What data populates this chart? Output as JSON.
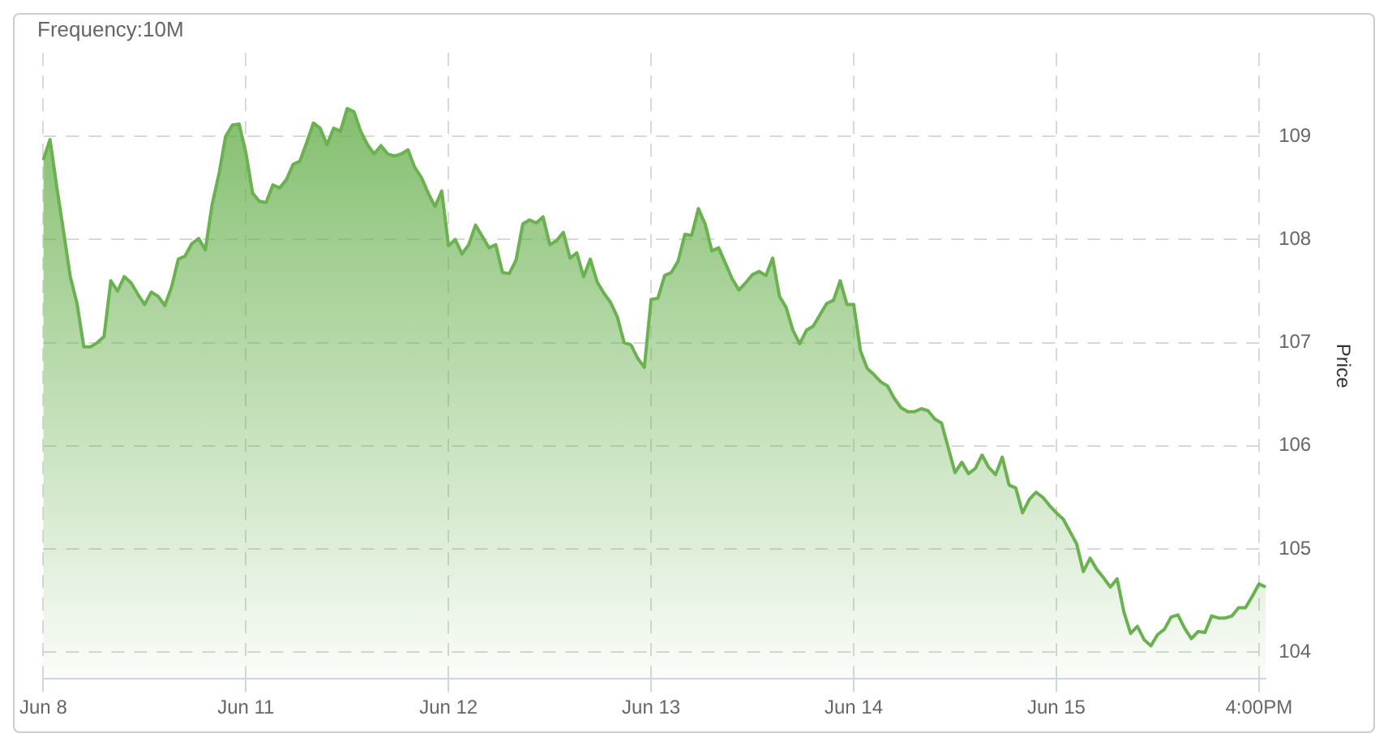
{
  "chart_data": {
    "type": "area",
    "title": "Frequency:10M",
    "ylabel": "Price",
    "categories": [
      "Jun 8",
      null,
      null,
      null,
      null,
      null,
      null,
      null,
      null,
      null,
      null,
      null,
      null,
      null,
      null,
      null,
      null,
      null,
      null,
      null,
      null,
      null,
      null,
      null,
      null,
      null,
      null,
      null,
      null,
      null,
      "Jun 11",
      null,
      null,
      null,
      null,
      null,
      null,
      null,
      null,
      null,
      null,
      null,
      null,
      null,
      null,
      null,
      null,
      null,
      null,
      null,
      null,
      null,
      null,
      null,
      null,
      null,
      null,
      null,
      null,
      null,
      "Jun 12",
      null,
      null,
      null,
      null,
      null,
      null,
      null,
      null,
      null,
      null,
      null,
      null,
      null,
      null,
      null,
      null,
      null,
      null,
      null,
      null,
      null,
      null,
      null,
      null,
      null,
      null,
      null,
      null,
      null,
      "Jun 13",
      null,
      null,
      null,
      null,
      null,
      null,
      null,
      null,
      null,
      null,
      null,
      null,
      null,
      null,
      null,
      null,
      null,
      null,
      null,
      null,
      null,
      null,
      null,
      null,
      null,
      null,
      null,
      null,
      null,
      "Jun 14",
      null,
      null,
      null,
      null,
      null,
      null,
      null,
      null,
      null,
      null,
      null,
      null,
      null,
      null,
      null,
      null,
      null,
      null,
      null,
      null,
      null,
      null,
      null,
      null,
      null,
      null,
      null,
      null,
      null,
      "Jun 15",
      null,
      null,
      null,
      null,
      null,
      null,
      null,
      null,
      null,
      null,
      null,
      null,
      null,
      null,
      null,
      null,
      null,
      null,
      null,
      null,
      null,
      null,
      null,
      null,
      null,
      null,
      null,
      null,
      null,
      "4:00PM",
      null
    ],
    "ylim": [
      103.74,
      109.81
    ],
    "yticks": [
      104,
      105,
      106,
      107,
      108,
      109
    ],
    "grid": true,
    "marker": "none",
    "series": [
      {
        "color": "#6ab150",
        "values": [
          108.77,
          108.97,
          108.51,
          108.08,
          107.64,
          107.38,
          106.96,
          106.96,
          107.0,
          107.06,
          107.6,
          107.5,
          107.64,
          107.58,
          107.47,
          107.37,
          107.49,
          107.45,
          107.36,
          107.54,
          107.81,
          107.84,
          107.96,
          108.01,
          107.9,
          108.34,
          108.63,
          109.0,
          109.11,
          109.12,
          108.84,
          108.45,
          108.37,
          108.36,
          108.53,
          108.5,
          108.58,
          108.73,
          108.76,
          108.94,
          109.13,
          109.08,
          108.92,
          109.08,
          109.05,
          109.27,
          109.24,
          109.05,
          108.92,
          108.83,
          108.91,
          108.83,
          108.81,
          108.83,
          108.87,
          108.7,
          108.6,
          108.45,
          108.32,
          108.47,
          107.94,
          108.0,
          107.86,
          107.95,
          108.14,
          108.03,
          107.92,
          107.95,
          107.68,
          107.67,
          107.8,
          108.15,
          108.19,
          108.16,
          108.22,
          107.95,
          107.99,
          108.07,
          107.82,
          107.87,
          107.64,
          107.81,
          107.59,
          107.48,
          107.39,
          107.25,
          107.0,
          106.98,
          106.85,
          106.76,
          107.42,
          107.43,
          107.65,
          107.68,
          107.79,
          108.05,
          108.04,
          108.3,
          108.15,
          107.89,
          107.92,
          107.77,
          107.62,
          107.51,
          107.58,
          107.66,
          107.69,
          107.65,
          107.82,
          107.45,
          107.34,
          107.12,
          106.99,
          107.12,
          107.16,
          107.27,
          107.38,
          107.41,
          107.6,
          107.37,
          107.37,
          106.92,
          106.75,
          106.69,
          106.62,
          106.58,
          106.46,
          106.37,
          106.33,
          106.33,
          106.36,
          106.34,
          106.26,
          106.22,
          105.98,
          105.74,
          105.84,
          105.73,
          105.78,
          105.91,
          105.79,
          105.72,
          105.89,
          105.62,
          105.59,
          105.35,
          105.48,
          105.55,
          105.5,
          105.42,
          105.35,
          105.29,
          105.17,
          105.05,
          104.78,
          104.91,
          104.8,
          104.72,
          104.63,
          104.71,
          104.39,
          104.18,
          104.25,
          104.12,
          104.06,
          104.17,
          104.22,
          104.34,
          104.36,
          104.23,
          104.13,
          104.2,
          104.19,
          104.35,
          104.33,
          104.33,
          104.35,
          104.43,
          104.43,
          104.54,
          104.66,
          104.63
        ]
      }
    ]
  }
}
